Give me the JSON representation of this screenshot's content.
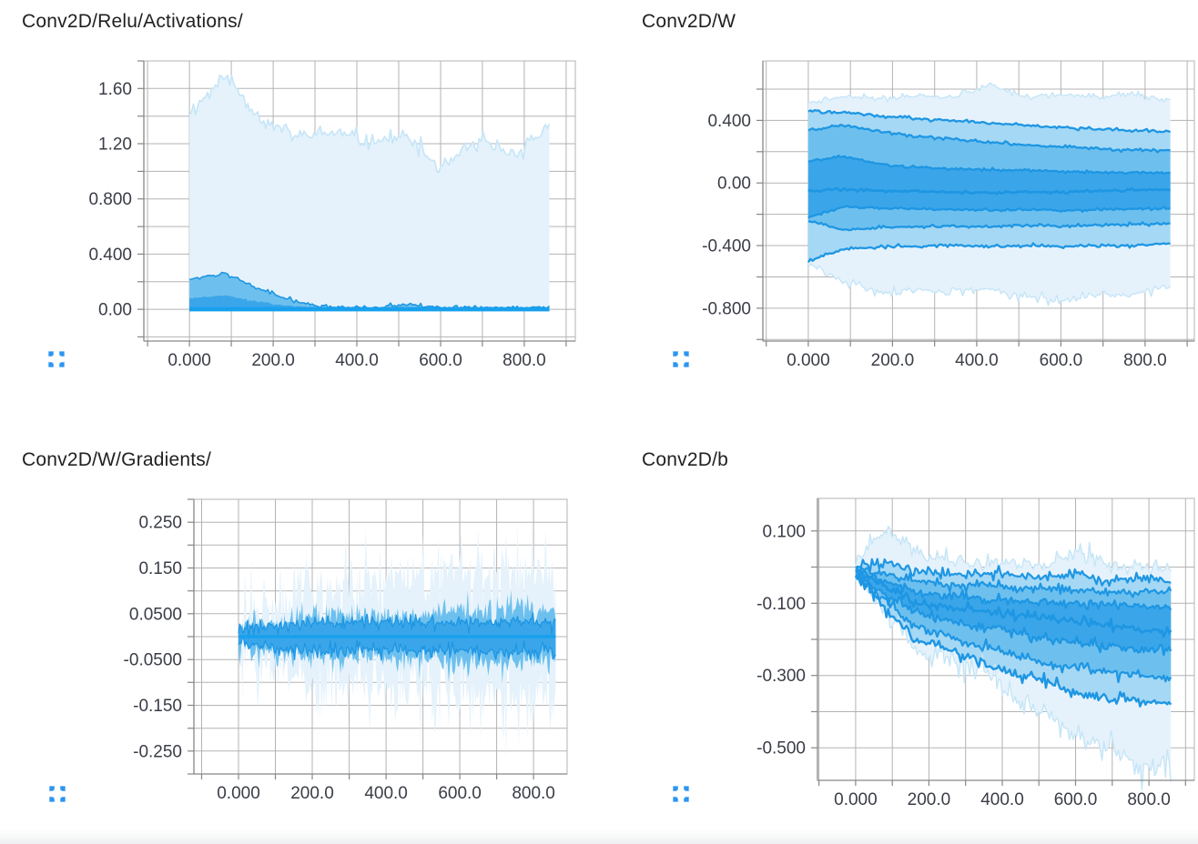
{
  "app": {
    "view_name": "distributions-dashboard"
  },
  "icons": {
    "expand": "fullscreen-corners-icon"
  },
  "colors": {
    "accent_blue": "#2b95f0",
    "band_outer": "#e5f2fb",
    "band_light": "#a5d8f4",
    "band_mid": "#6dc0ee",
    "band_strong": "#3aa6e9",
    "stroke_percentile": "#1e96e3",
    "stroke_soft": "#c6e5f7",
    "stroke_median_thick": "#17a0ed",
    "grid": "#b3b3b3",
    "axis": "#878787",
    "tick_text": "#3a3d46",
    "title_text": "#212121"
  },
  "chart_data": [
    {
      "type": "area",
      "title": "Conv2D/Relu/Activations/",
      "xlabel": "",
      "ylabel": "",
      "legend": "none",
      "grid": true,
      "xlim": [
        -109,
        922
      ],
      "ylim": [
        -0.23,
        1.8
      ],
      "grid_x_step": 100,
      "grid_y_step": 0.2,
      "x_ticks": [
        {
          "label": "0.000",
          "v": 0
        },
        {
          "label": "200.0",
          "v": 200
        },
        {
          "label": "400.0",
          "v": 400
        },
        {
          "label": "600.0",
          "v": 600
        },
        {
          "label": "800.0",
          "v": 800
        }
      ],
      "y_ticks": [
        {
          "label": "1.60",
          "v": 1.6
        },
        {
          "label": "1.20",
          "v": 1.2
        },
        {
          "label": "0.800",
          "v": 0.8
        },
        {
          "label": "0.400",
          "v": 0.4
        },
        {
          "label": "0.00",
          "v": 0
        }
      ],
      "layout": {
        "plot": {
          "l": 158,
          "t": 67,
          "r": 632,
          "b": 375
        }
      },
      "data": {
        "x_start": 0,
        "x_end": 860,
        "n": 180,
        "series": {
          "max": {
            "pts": [
              1.42,
              1.7,
              1.38,
              1.25,
              1.28,
              1.22,
              1.25,
              1.02,
              1.22,
              1.12,
              1.33
            ],
            "noise": 0.055,
            "seed": 11
          },
          "p84": {
            "pts": [
              0.22,
              0.26,
              0.14,
              0.05,
              0.015,
              0.012,
              0.035,
              0.012,
              0.012,
              0.012,
              0.012
            ],
            "noise": 0.012,
            "seed": 12
          },
          "p69": {
            "pts": [
              0.08,
              0.1,
              0.05,
              0.02,
              0.008,
              0.006,
              0.015,
              0.006,
              0.006,
              0.006,
              0.006
            ],
            "noise": 0.006,
            "seed": 13
          },
          "zero": {
            "pts": [
              0.0
            ],
            "noise": 0,
            "seed": 1
          }
        },
        "bands": [
          {
            "top": "max",
            "bot": "zero",
            "fill": "band_outer"
          },
          {
            "top": "p84",
            "bot": "zero",
            "fill": "band_mid"
          },
          {
            "top": "p69",
            "bot": "zero",
            "fill": "band_strong"
          }
        ],
        "lines": [
          {
            "s": "max",
            "color": "stroke_soft",
            "w": 1.6
          },
          {
            "s": "p84",
            "color": "stroke_percentile",
            "w": 1.6
          },
          {
            "s": "zero",
            "color": "stroke_median_thick",
            "w": 4.6
          }
        ]
      }
    },
    {
      "type": "area",
      "title": "Conv2D/W",
      "xlabel": "",
      "ylabel": "",
      "legend": "none",
      "grid": true,
      "xlim": [
        -108,
        917
      ],
      "ylim": [
        -1.01,
        0.78
      ],
      "grid_x_step": 100,
      "grid_y_step": 0.2,
      "x_ticks": [
        {
          "label": "0.000",
          "v": 0
        },
        {
          "label": "200.0",
          "v": 200
        },
        {
          "label": "400.0",
          "v": 400
        },
        {
          "label": "600.0",
          "v": 600
        },
        {
          "label": "800.0",
          "v": 800
        }
      ],
      "y_ticks": [
        {
          "label": "0.400",
          "v": 0.4
        },
        {
          "label": "0.00",
          "v": 0
        },
        {
          "label": "-0.400",
          "v": -0.4
        },
        {
          "label": "-0.800",
          "v": -0.8
        }
      ],
      "layout": {
        "plot": {
          "l": 180,
          "t": 67,
          "r": 654,
          "b": 375
        }
      },
      "data": {
        "x_start": 0,
        "x_end": 860,
        "n": 170,
        "series": {
          "max": {
            "pts": [
              0.52,
              0.55,
              0.54,
              0.56,
              0.55,
              0.63,
              0.55,
              0.56,
              0.55,
              0.57,
              0.52
            ],
            "noise": 0.018,
            "seed": 21
          },
          "p93": {
            "pts": [
              0.46,
              0.45,
              0.43,
              0.41,
              0.4,
              0.385,
              0.37,
              0.355,
              0.345,
              0.335,
              0.33
            ],
            "noise": 0.008,
            "seed": 22
          },
          "p84": {
            "pts": [
              0.34,
              0.37,
              0.33,
              0.3,
              0.28,
              0.26,
              0.245,
              0.23,
              0.22,
              0.21,
              0.21
            ],
            "noise": 0.008,
            "seed": 23
          },
          "p69": {
            "pts": [
              0.14,
              0.17,
              0.12,
              0.1,
              0.09,
              0.085,
              0.08,
              0.075,
              0.07,
              0.065,
              0.065
            ],
            "noise": 0.007,
            "seed": 24
          },
          "med": {
            "pts": [
              -0.05,
              -0.04,
              -0.05,
              -0.055,
              -0.06,
              -0.06,
              -0.055,
              -0.06,
              -0.05,
              -0.045,
              -0.04
            ],
            "noise": 0.006,
            "seed": 25
          },
          "p31": {
            "pts": [
              -0.22,
              -0.15,
              -0.16,
              -0.165,
              -0.17,
              -0.175,
              -0.17,
              -0.175,
              -0.17,
              -0.165,
              -0.165
            ],
            "noise": 0.007,
            "seed": 26
          },
          "p16": {
            "pts": [
              -0.24,
              -0.3,
              -0.285,
              -0.28,
              -0.275,
              -0.28,
              -0.27,
              -0.275,
              -0.27,
              -0.265,
              -0.26
            ],
            "noise": 0.008,
            "seed": 27
          },
          "p7": {
            "pts": [
              -0.5,
              -0.42,
              -0.41,
              -0.4,
              -0.4,
              -0.405,
              -0.4,
              -0.405,
              -0.4,
              -0.4,
              -0.385
            ],
            "noise": 0.009,
            "seed": 28
          },
          "min": {
            "pts": [
              -0.52,
              -0.63,
              -0.7,
              -0.68,
              -0.7,
              -0.68,
              -0.72,
              -0.76,
              -0.72,
              -0.7,
              -0.66
            ],
            "noise": 0.025,
            "seed": 29
          }
        },
        "bands": [
          {
            "top": "max",
            "bot": "min",
            "fill": "band_outer"
          },
          {
            "top": "p93",
            "bot": "p7",
            "fill": "band_light"
          },
          {
            "top": "p84",
            "bot": "p16",
            "fill": "band_mid"
          },
          {
            "top": "p69",
            "bot": "p31",
            "fill": "band_strong"
          }
        ],
        "lines": [
          {
            "s": "max",
            "color": "stroke_soft",
            "w": 1.4
          },
          {
            "s": "min",
            "color": "stroke_soft",
            "w": 1.4
          },
          {
            "s": "p93",
            "color": "stroke_percentile",
            "w": 2.3
          },
          {
            "s": "p84",
            "color": "stroke_percentile",
            "w": 2.3
          },
          {
            "s": "p69",
            "color": "stroke_percentile",
            "w": 2.3
          },
          {
            "s": "med",
            "color": "stroke_percentile",
            "w": 2.8
          },
          {
            "s": "p31",
            "color": "stroke_percentile",
            "w": 2.3
          },
          {
            "s": "p16",
            "color": "stroke_percentile",
            "w": 2.3
          },
          {
            "s": "p7",
            "color": "stroke_percentile",
            "w": 2.3
          }
        ]
      }
    },
    {
      "type": "area",
      "title": "Conv2D/W/Gradients/",
      "xlabel": "",
      "ylabel": "",
      "legend": "none",
      "grid": true,
      "xlim": [
        -121,
        891
      ],
      "ylim": [
        -0.3,
        0.3
      ],
      "grid_x_step": 100,
      "grid_y_step": 0.05,
      "x_ticks": [
        {
          "label": "0.000",
          "v": 0
        },
        {
          "label": "200.0",
          "v": 200
        },
        {
          "label": "400.0",
          "v": 400
        },
        {
          "label": "600.0",
          "v": 600
        },
        {
          "label": "800.0",
          "v": 800
        }
      ],
      "y_ticks": [
        {
          "label": "0.250",
          "v": 0.25
        },
        {
          "label": "0.150",
          "v": 0.15
        },
        {
          "label": "0.0500",
          "v": 0.05
        },
        {
          "label": "-0.0500",
          "v": -0.05
        },
        {
          "label": "-0.150",
          "v": -0.15
        },
        {
          "label": "-0.250",
          "v": -0.25
        }
      ],
      "layout": {
        "plot": {
          "l": 213,
          "t": 85,
          "r": 623,
          "b": 387
        }
      },
      "data": {
        "x_start": 0,
        "x_end": 860,
        "n": 250,
        "series": {
          "otop": {
            "pts": [
              0.03,
              0.07,
              0.11,
              0.12,
              0.11,
              0.14,
              0.12,
              0.14,
              0.13,
              0.16,
              0.13
            ],
            "noise": 0.075,
            "seed": 31
          },
          "obot": {
            "pts": [
              -0.03,
              -0.07,
              -0.1,
              -0.12,
              -0.1,
              -0.13,
              -0.12,
              -0.13,
              -0.13,
              -0.15,
              -0.13
            ],
            "noise": 0.075,
            "seed": 32
          },
          "mtop": {
            "pts": [
              0.02,
              0.035,
              0.045,
              0.05,
              0.045,
              0.055,
              0.05,
              0.055,
              0.055,
              0.06,
              0.05
            ],
            "noise": 0.028,
            "seed": 33
          },
          "mbot": {
            "pts": [
              -0.02,
              -0.035,
              -0.045,
              -0.05,
              -0.045,
              -0.055,
              -0.05,
              -0.055,
              -0.055,
              -0.06,
              -0.05
            ],
            "noise": 0.028,
            "seed": 34
          },
          "itop": {
            "pts": [
              0.012,
              0.02,
              0.028,
              0.03,
              0.028,
              0.032,
              0.03,
              0.032,
              0.032,
              0.034,
              0.03
            ],
            "noise": 0.014,
            "seed": 35
          },
          "ibot": {
            "pts": [
              -0.012,
              -0.02,
              -0.028,
              -0.03,
              -0.028,
              -0.032,
              -0.03,
              -0.032,
              -0.032,
              -0.034,
              -0.03
            ],
            "noise": 0.014,
            "seed": 36
          },
          "zero": {
            "pts": [
              0.0
            ],
            "noise": 0,
            "seed": 1
          }
        },
        "bands": [
          {
            "top": "otop",
            "bot": "obot",
            "fill": "band_outer"
          },
          {
            "top": "mtop",
            "bot": "mbot",
            "fill": "band_mid"
          },
          {
            "top": "itop",
            "bot": "ibot",
            "fill": "band_strong"
          }
        ],
        "lines": [
          {
            "s": "itop",
            "color": "stroke_percentile",
            "w": 1.3
          },
          {
            "s": "ibot",
            "color": "stroke_percentile",
            "w": 1.3
          },
          {
            "s": "zero",
            "color": "stroke_median_thick",
            "w": 3.4
          }
        ]
      }
    },
    {
      "type": "area",
      "title": "Conv2D/b",
      "xlabel": "",
      "ylabel": "",
      "legend": "none",
      "grid": true,
      "xlim": [
        -104,
        924
      ],
      "ylim": [
        -0.59,
        0.19
      ],
      "grid_x_step": 100,
      "grid_y_step": 0.1,
      "x_ticks": [
        {
          "label": "0.000",
          "v": 0
        },
        {
          "label": "200.0",
          "v": 200
        },
        {
          "label": "400.0",
          "v": 400
        },
        {
          "label": "600.0",
          "v": 600
        },
        {
          "label": "800.0",
          "v": 800
        }
      ],
      "y_ticks": [
        {
          "label": "0.100",
          "v": 0.1
        },
        {
          "label": "-0.100",
          "v": -0.1
        },
        {
          "label": "-0.300",
          "v": -0.3
        },
        {
          "label": "-0.500",
          "v": -0.5
        }
      ],
      "layout": {
        "plot": {
          "l": 240,
          "t": 84,
          "r": 654,
          "b": 394
        }
      },
      "data": {
        "x_start": 0,
        "x_end": 860,
        "n": 175,
        "series": {
          "max": {
            "pts": [
              0.02,
              0.1,
              0.04,
              0.02,
              0.01,
              0.02,
              0.0,
              0.05,
              0.01,
              0.0,
              -0.01
            ],
            "noise": 0.02,
            "seed": 41
          },
          "p93": {
            "pts": [
              0.0,
              0.01,
              -0.01,
              -0.02,
              -0.02,
              -0.02,
              -0.03,
              -0.02,
              -0.04,
              -0.03,
              -0.04
            ],
            "noise": 0.012,
            "seed": 42
          },
          "p84": {
            "pts": [
              0.0,
              -0.02,
              -0.04,
              -0.05,
              -0.05,
              -0.06,
              -0.06,
              -0.06,
              -0.07,
              -0.07,
              -0.07
            ],
            "noise": 0.011,
            "seed": 43
          },
          "p69": {
            "pts": [
              -0.01,
              -0.04,
              -0.07,
              -0.08,
              -0.09,
              -0.09,
              -0.1,
              -0.1,
              -0.1,
              -0.11,
              -0.11
            ],
            "noise": 0.011,
            "seed": 44
          },
          "med": {
            "pts": [
              -0.01,
              -0.06,
              -0.1,
              -0.11,
              -0.12,
              -0.13,
              -0.14,
              -0.15,
              -0.16,
              -0.17,
              -0.18
            ],
            "noise": 0.011,
            "seed": 45
          },
          "p31": {
            "pts": [
              -0.02,
              -0.08,
              -0.13,
              -0.15,
              -0.17,
              -0.18,
              -0.2,
              -0.21,
              -0.22,
              -0.23,
              -0.23
            ],
            "noise": 0.012,
            "seed": 46
          },
          "p16": {
            "pts": [
              -0.02,
              -0.1,
              -0.17,
              -0.19,
              -0.22,
              -0.24,
              -0.27,
              -0.28,
              -0.29,
              -0.3,
              -0.31
            ],
            "noise": 0.014,
            "seed": 47
          },
          "p7": {
            "pts": [
              -0.02,
              -0.12,
              -0.2,
              -0.23,
              -0.26,
              -0.3,
              -0.31,
              -0.35,
              -0.36,
              -0.37,
              -0.38
            ],
            "noise": 0.014,
            "seed": 48
          },
          "min": {
            "pts": [
              -0.02,
              -0.12,
              -0.24,
              -0.26,
              -0.28,
              -0.36,
              -0.4,
              -0.47,
              -0.5,
              -0.56,
              -0.54
            ],
            "noise": 0.03,
            "seed": 49
          }
        },
        "bands": [
          {
            "top": "max",
            "bot": "min",
            "fill": "band_outer"
          },
          {
            "top": "p93",
            "bot": "p7",
            "fill": "band_light"
          },
          {
            "top": "p84",
            "bot": "p16",
            "fill": "band_mid"
          },
          {
            "top": "p69",
            "bot": "p31",
            "fill": "band_strong"
          }
        ],
        "lines": [
          {
            "s": "max",
            "color": "stroke_soft",
            "w": 1.4
          },
          {
            "s": "min",
            "color": "stroke_soft",
            "w": 1.4
          },
          {
            "s": "p93",
            "color": "stroke_percentile",
            "w": 2.2
          },
          {
            "s": "p84",
            "color": "stroke_percentile",
            "w": 2.2
          },
          {
            "s": "p69",
            "color": "stroke_percentile",
            "w": 2.2
          },
          {
            "s": "med",
            "color": "stroke_percentile",
            "w": 2.6
          },
          {
            "s": "p31",
            "color": "stroke_percentile",
            "w": 2.2
          },
          {
            "s": "p16",
            "color": "stroke_percentile",
            "w": 2.2
          },
          {
            "s": "p7",
            "color": "stroke_percentile",
            "w": 2.4
          }
        ]
      }
    }
  ]
}
